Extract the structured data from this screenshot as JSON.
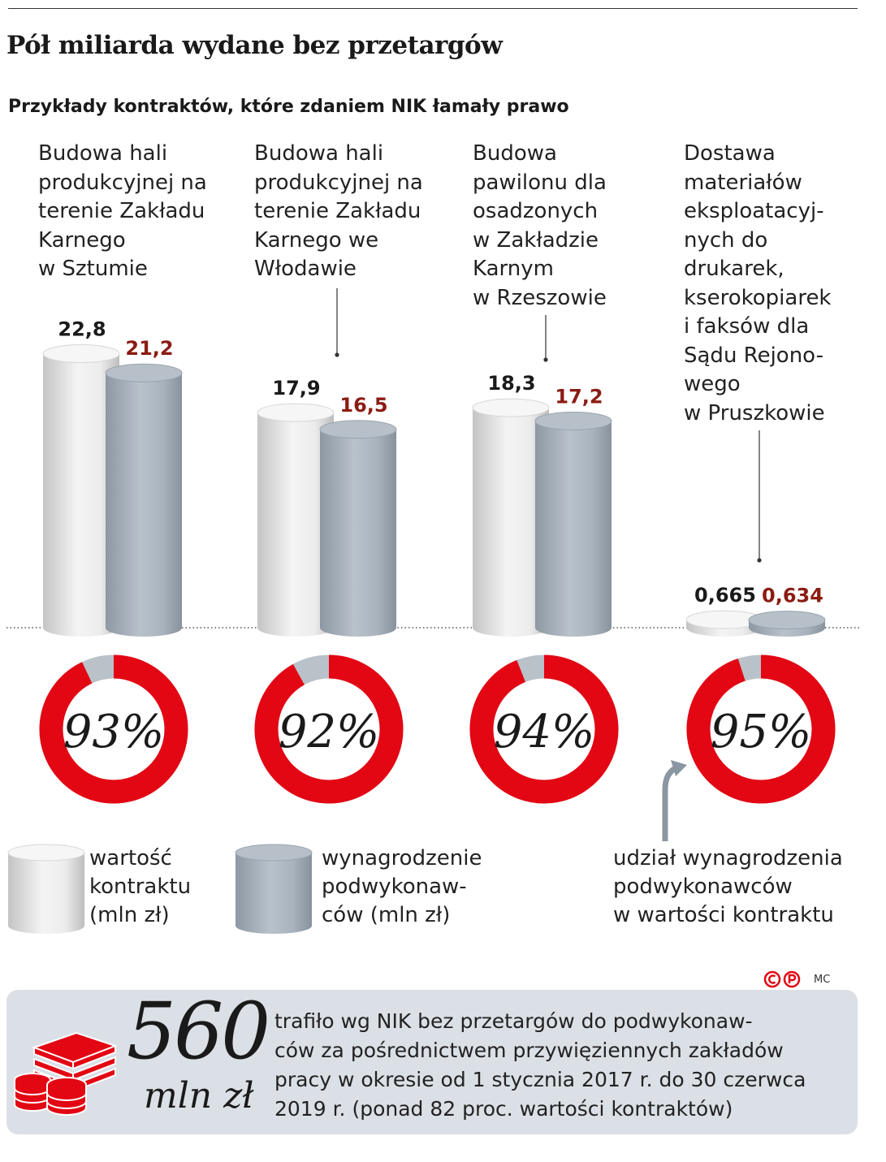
{
  "title": "Pół miliarda wydane bez przetargów",
  "subtitle": "Przykłady kontraktów, które zdaniem NIK łamały prawo",
  "chart_data": {
    "type": "bar",
    "categories": [
      "Budowa hali\nprodukcyjnej na\nterenie Zakładu\nKarnego\nw Sztumie",
      "Budowa hali\nprodukcyjnej na\nterenie Zakładu\nKarnego we\nWłodawie",
      "Budowa\npawilonu dla\nosadzonych\nw Zakładzie\nKarnym\nw Rzeszowie",
      "Dostawa\nmateriałów\neksploatacyj-\nnych do\ndrukarek,\nkserokopiarek\ni faksów dla\nSądu Rejono-\nwego\nw Pruszkowie"
    ],
    "series": [
      {
        "name": "wartość\nkontraktu\n(mln zł)",
        "values": [
          22.8,
          17.9,
          18.3,
          0.665
        ],
        "labels": [
          "22,8",
          "17,9",
          "18,3",
          "0,665"
        ]
      },
      {
        "name": "wynagrodzenie\npodwykonaw-\nców (mln zł)",
        "values": [
          21.2,
          16.5,
          17.2,
          0.634
        ],
        "labels": [
          "21,2",
          "16,5",
          "17,2",
          "0,634"
        ]
      }
    ],
    "shares": {
      "name": "udział wynagrodzenia\npodwykonawców\nw wartości kontraktu",
      "values": [
        93,
        92,
        94,
        95
      ],
      "labels": [
        "93%",
        "92%",
        "94%",
        "95%"
      ]
    },
    "ylim": [
      0,
      25
    ],
    "colors": {
      "contract": "#ececec",
      "subcontractor": "#a6b0ba",
      "share": "#e30613",
      "share_rest": "#b9c1c9",
      "subcontractor_label": "#8b1c13"
    }
  },
  "credit": "MC",
  "summary": {
    "value": "560",
    "unit": "mln zł",
    "text": "trafiło wg NIK bez przetargów do podwykonaw-\nców za pośrednictwem przywięziennych zakładów\npracy w okresie od 1 stycznia 2017 r. do 30 czerwca\n2019 r. (ponad 82 proc. wartości kontraktów)",
    "icon": "money-stack-icon"
  }
}
